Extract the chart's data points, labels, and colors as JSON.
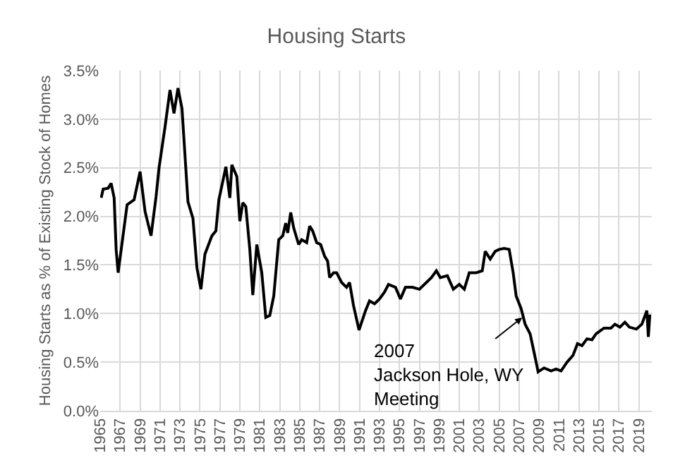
{
  "chart_data": {
    "type": "line",
    "title": "Housing Starts",
    "ylabel": "Housing Starts as % of Existing Stock of Homes",
    "x": [
      1965.1,
      1965.3,
      1965.8,
      1966.1,
      1966.4,
      1966.6,
      1966.8,
      1967.7,
      1968.4,
      1969.0,
      1969.5,
      1970.1,
      1970.6,
      1970.9,
      1971.5,
      1972.0,
      1972.4,
      1972.8,
      1973.2,
      1973.8,
      1974.3,
      1974.7,
      1975.1,
      1975.5,
      1976.2,
      1976.6,
      1976.9,
      1977.6,
      1978.0,
      1978.2,
      1978.7,
      1979.0,
      1979.3,
      1979.6,
      1980.0,
      1980.3,
      1980.7,
      1981.2,
      1981.6,
      1982.0,
      1982.4,
      1982.9,
      1983.3,
      1983.6,
      1983.8,
      1984.1,
      1984.4,
      1984.9,
      1985.2,
      1985.7,
      1986.0,
      1986.3,
      1986.7,
      1987.1,
      1987.5,
      1987.8,
      1988.0,
      1988.4,
      1988.7,
      1989.2,
      1989.7,
      1990.0,
      1990.4,
      1990.95,
      1991.6,
      1992.0,
      1992.5,
      1993.0,
      1993.5,
      1993.9,
      1994.6,
      1995.1,
      1995.6,
      1996.3,
      1997.0,
      1997.7,
      1998.2,
      1998.7,
      1999.1,
      1999.8,
      2000.4,
      2001.0,
      2001.5,
      2002.0,
      2002.7,
      2003.3,
      2003.6,
      2004.1,
      2004.6,
      2005.0,
      2005.5,
      2006.0,
      2006.4,
      2006.7,
      2007.2,
      2007.6,
      2008.1,
      2008.6,
      2008.9,
      2009.5,
      2010.2,
      2010.7,
      2011.2,
      2011.8,
      2012.4,
      2012.85,
      2013.3,
      2013.8,
      2014.3,
      2014.7,
      2015.5,
      2016.2,
      2016.6,
      2017.1,
      2017.6,
      2018.05,
      2018.75,
      2019.3,
      2019.8,
      2019.95,
      2020.1
    ],
    "series": [
      {
        "color": "#000000",
        "values": [
          2.19,
          2.28,
          2.29,
          2.34,
          2.19,
          1.66,
          1.42,
          2.12,
          2.17,
          2.46,
          2.05,
          1.8,
          2.2,
          2.5,
          2.92,
          3.3,
          3.06,
          3.32,
          3.11,
          2.15,
          1.98,
          1.47,
          1.25,
          1.61,
          1.8,
          1.85,
          2.17,
          2.51,
          2.19,
          2.53,
          2.41,
          1.95,
          2.14,
          2.1,
          1.66,
          1.19,
          1.71,
          1.42,
          0.96,
          0.98,
          1.18,
          1.76,
          1.8,
          1.93,
          1.83,
          2.04,
          1.88,
          1.71,
          1.76,
          1.73,
          1.9,
          1.85,
          1.73,
          1.71,
          1.59,
          1.54,
          1.37,
          1.42,
          1.42,
          1.32,
          1.27,
          1.32,
          1.08,
          0.83,
          1.03,
          1.13,
          1.1,
          1.15,
          1.22,
          1.3,
          1.27,
          1.15,
          1.27,
          1.27,
          1.25,
          1.32,
          1.37,
          1.44,
          1.37,
          1.39,
          1.25,
          1.3,
          1.25,
          1.42,
          1.42,
          1.44,
          1.64,
          1.56,
          1.64,
          1.66,
          1.67,
          1.66,
          1.42,
          1.18,
          1.05,
          0.89,
          0.79,
          0.55,
          0.4,
          0.44,
          0.41,
          0.43,
          0.41,
          0.5,
          0.57,
          0.69,
          0.67,
          0.74,
          0.73,
          0.79,
          0.85,
          0.85,
          0.89,
          0.86,
          0.91,
          0.86,
          0.84,
          0.89,
          1.03,
          0.76,
          0.99
        ]
      }
    ],
    "xlim": [
      1965,
      2020.3
    ],
    "xticks": [
      1965,
      1967,
      1969,
      1971,
      1973,
      1975,
      1977,
      1979,
      1981,
      1983,
      1985,
      1987,
      1989,
      1991,
      1993,
      1995,
      1997,
      1999,
      2001,
      2003,
      2005,
      2007,
      2009,
      2011,
      2013,
      2015,
      2017,
      2019
    ],
    "ylim": [
      0,
      3.5
    ],
    "yticks": [
      {
        "value": 0,
        "label": "0.0%"
      },
      {
        "value": 0.5,
        "label": "0.5%"
      },
      {
        "value": 1,
        "label": "1.0%"
      },
      {
        "value": 1.5,
        "label": "1.5%"
      },
      {
        "value": 2,
        "label": "2.0%"
      },
      {
        "value": 2.5,
        "label": "2.5%"
      },
      {
        "value": 3,
        "label": "3.0%"
      },
      {
        "value": 3.5,
        "label": "3.5%"
      }
    ],
    "grid": true,
    "marker": "none",
    "line_style": "solid",
    "annotations": [
      "2007\nJackson Hole, WY\nMeeting"
    ]
  }
}
